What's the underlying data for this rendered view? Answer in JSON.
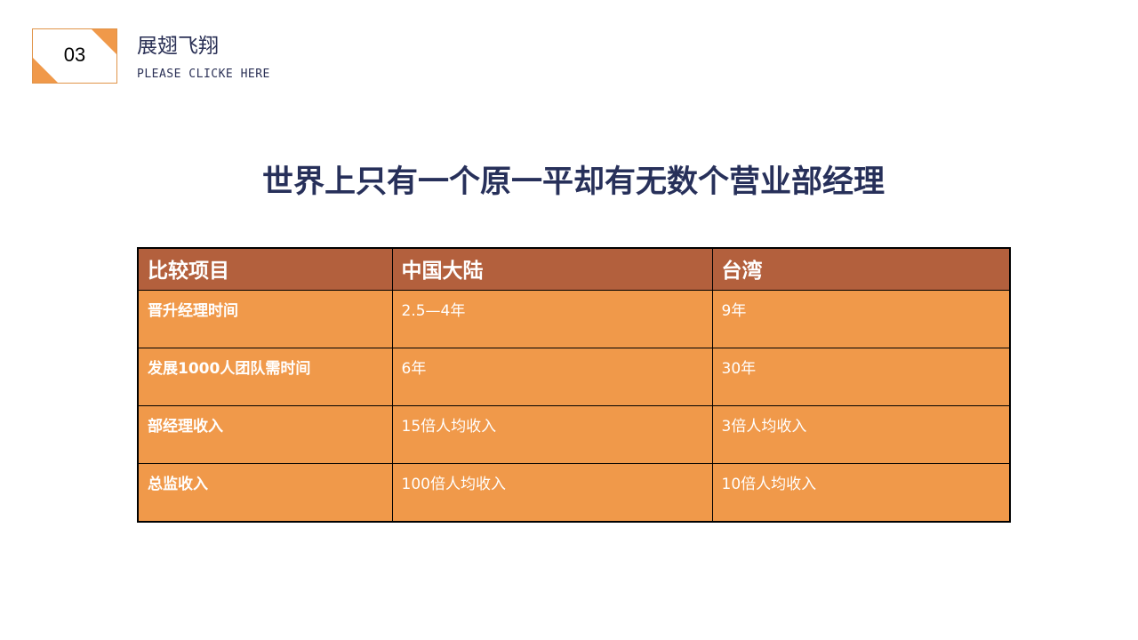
{
  "badge": {
    "number": "03"
  },
  "header": {
    "title": "展翅飞翔",
    "subtitle": "PLEASE CLICKE HERE"
  },
  "main": {
    "title": "世界上只有一个原一平却有无数个营业部经理"
  },
  "table": {
    "headers": [
      "比较项目",
      "中国大陆",
      "台湾"
    ],
    "rows": [
      [
        "晋升经理时间",
        "2.5—4年",
        "9年"
      ],
      [
        "发展1000人团队需时间",
        "6年",
        "30年"
      ],
      [
        "部经理收入",
        "15倍人均收入",
        "3倍人均收入"
      ],
      [
        "总监收入",
        "100倍人均收入",
        "10倍人均收入"
      ]
    ]
  },
  "colors": {
    "accent": "#f0994a",
    "header_bg": "#b3603d",
    "title": "#27305a"
  }
}
